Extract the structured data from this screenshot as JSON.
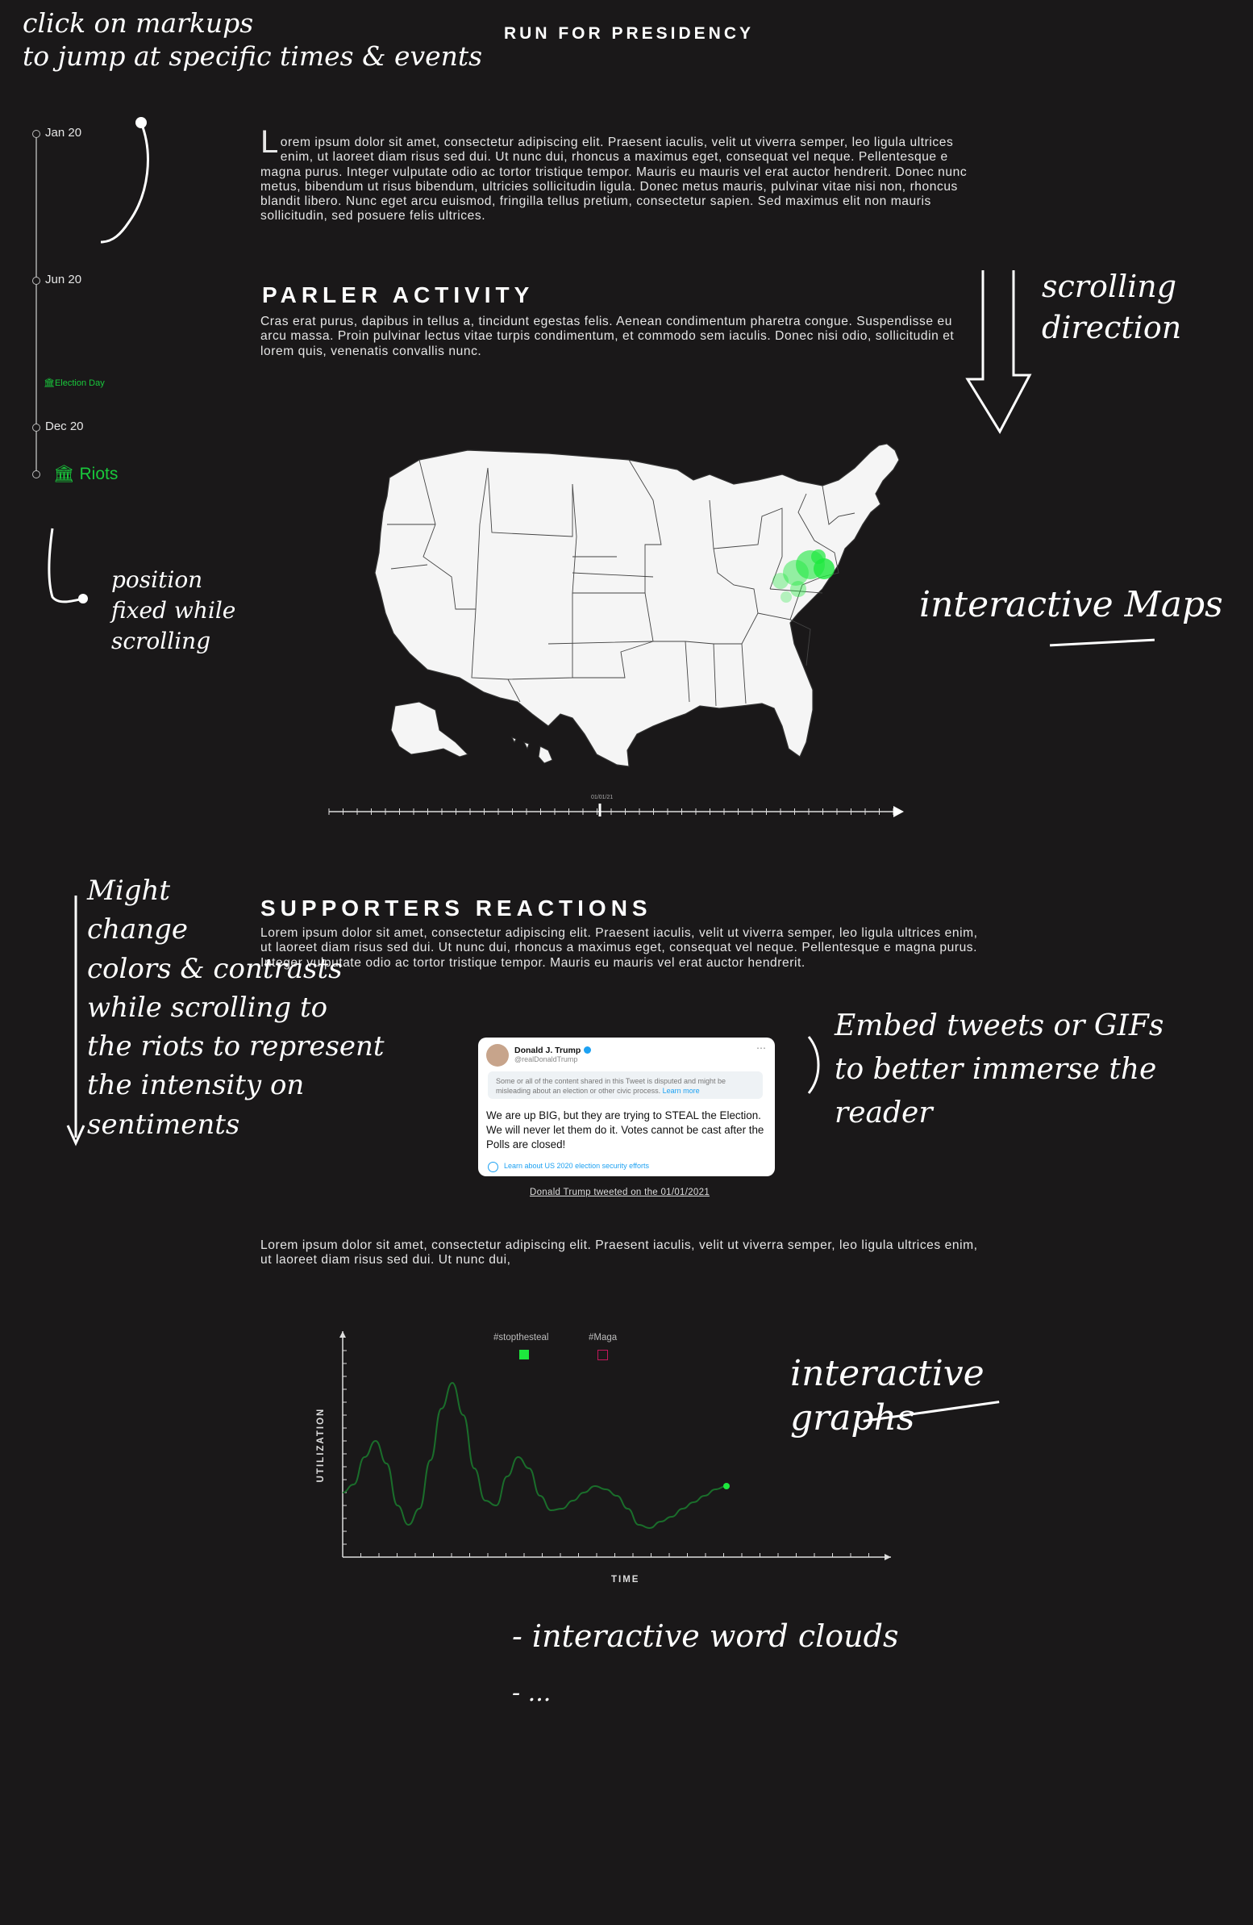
{
  "header": {
    "title": "RUN FOR PRESIDENCY"
  },
  "timeline": {
    "items": [
      {
        "label": "Jan 20",
        "type": "date"
      },
      {
        "label": "Jun 20",
        "type": "date"
      },
      {
        "label": "Election Day",
        "type": "event"
      },
      {
        "label": "Dec 20",
        "type": "date"
      },
      {
        "label": "Riots",
        "type": "event"
      }
    ]
  },
  "intro": {
    "dropcap": "L",
    "text": "orem ipsum dolor sit amet, consectetur adipiscing elit. Praesent iaculis, velit ut viverra semper, leo ligula ultrices enim, ut laoreet diam risus sed dui. Ut nunc dui, rhoncus a maximus eget, consequat vel neque. Pellentesque e magna purus. Integer vulputate odio ac tortor tristique tempor. Mauris eu mauris vel erat auctor hendrerit. Donec nunc metus, bibendum ut risus bibendum, ultricies sollicitudin ligula. Donec metus mauris, pulvinar vitae nisi non, rhoncus blandit libero. Nunc eget arcu euismod, fringilla tellus pretium, consectetur sapien. Sed maximus elit non mauris sollicitudin, sed posuere felis ultrices."
  },
  "parler": {
    "heading": "PARLER ACTIVITY",
    "text": "Cras erat purus, dapibus in tellus a, tincidunt egestas felis. Aenean condimentum pharetra congue. Suspendisse eu arcu massa. Proin pulvinar lectus vitae turpis condimentum, et commodo sem iaculis. Donec nisi odio, sollicitudin et lorem quis, venenatis convallis nunc.",
    "slider_label": "01/01/21",
    "slider_position": 0.48,
    "highlight_color": "#1de83d"
  },
  "supporters": {
    "heading": "SUPPORTERS REACTIONS",
    "text": "Lorem ipsum dolor sit amet, consectetur adipiscing elit. Praesent iaculis, velit ut viverra semper, leo ligula ultrices enim, ut laoreet diam risus sed dui. Ut nunc dui, rhoncus a maximus eget, consequat vel neque. Pellentesque e magna purus. Integer vulputate odio ac tortor tristique tempor. Mauris eu mauris vel erat auctor hendrerit."
  },
  "tweet": {
    "name": "Donald J. Trump",
    "handle": "@realDonaldTrump",
    "notice": "Some or all of the content shared in this Tweet is disputed and might be misleading about an election or other civic process.",
    "notice_link": "Learn more",
    "text": "We are up BIG, but they are trying to STEAL the Election. We will never let them do it. Votes cannot be cast after the Polls are closed!",
    "footer_link": "Learn about US 2020 election security efforts",
    "caption": "Donald Trump tweeted on the 01/01/2021"
  },
  "after_tweet": {
    "text": "Lorem ipsum dolor sit amet, consectetur adipiscing elit. Praesent iaculis, velit ut viverra semper, leo ligula ultrices enim, ut laoreet diam risus sed dui. Ut nunc dui,"
  },
  "chart_data": {
    "type": "line",
    "xlabel": "TIME",
    "ylabel": "UTILIZATION",
    "legend": [
      {
        "name": "#stopthesteal",
        "color": "#1de83d",
        "filled": true
      },
      {
        "name": "#Maga",
        "color": "#c2185b",
        "filled": false
      }
    ],
    "series": [
      {
        "name": "#stopthesteal",
        "color": "#1a6e2b",
        "x": [
          0,
          2,
          4,
          6,
          8,
          10,
          12,
          14,
          16,
          18,
          20,
          22,
          24,
          26,
          28,
          30,
          32,
          34,
          36,
          38,
          40,
          42,
          44,
          46,
          48,
          50,
          52,
          54,
          56,
          58,
          60,
          62,
          64,
          66,
          68,
          70
        ],
        "y": [
          40,
          45,
          62,
          72,
          58,
          32,
          20,
          30,
          60,
          92,
          108,
          88,
          55,
          35,
          32,
          50,
          62,
          55,
          38,
          29,
          30,
          35,
          40,
          44,
          42,
          38,
          30,
          20,
          18,
          22,
          25,
          30,
          34,
          38,
          42,
          44
        ]
      }
    ],
    "xlim": [
      0,
      100
    ],
    "ylim": [
      0,
      130
    ]
  },
  "annotations": {
    "markups": "click on markups\nto jump at specific times & events",
    "scrolling": "scrolling\ndirection",
    "position": "position\nfixed while\nscrolling",
    "maps": "interactive Maps",
    "colors": "Might\nchange\ncolors & contrasts\nwhile scrolling to\nthe riots to represent\nthe intensity on sentiments",
    "embed": "Embed tweets or GIFs\nto better immerse the reader",
    "graphs": "interactive graphs",
    "wordclouds": "- interactive word clouds",
    "more": "- ..."
  }
}
